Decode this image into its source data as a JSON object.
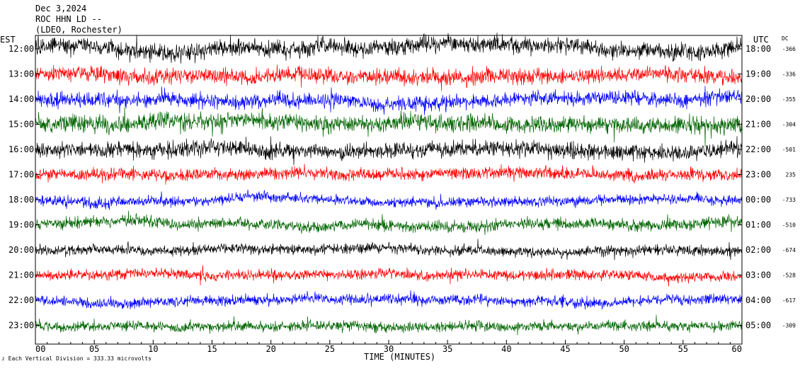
{
  "header": {
    "date": "Dec 3,2024",
    "station": "ROC HHN LD --",
    "network": "(LDEO, Rochester)"
  },
  "chart_data": {
    "type": "line",
    "title": "Dec 3,2024",
    "xlabel": "TIME (MINUTES)",
    "x_ticks": [
      "00",
      "05",
      "10",
      "15",
      "20",
      "25",
      "30",
      "35",
      "40",
      "45",
      "50",
      "55",
      "60"
    ],
    "xlim": [
      0,
      60
    ],
    "left_axis_label": "EST",
    "right_axis_label": "UTC",
    "dc_label": "DC",
    "rows": [
      {
        "est": "12:00",
        "utc": "18:00",
        "dc": "-366",
        "color": "#000000",
        "amplitude": 0.75
      },
      {
        "est": "13:00",
        "utc": "19:00",
        "dc": "-336",
        "color": "#ff0000",
        "amplitude": 0.7
      },
      {
        "est": "14:00",
        "utc": "20:00",
        "dc": "-355",
        "color": "#0000ff",
        "amplitude": 0.65
      },
      {
        "est": "15:00",
        "utc": "21:00",
        "dc": "-304",
        "color": "#006400",
        "amplitude": 0.75
      },
      {
        "est": "16:00",
        "utc": "22:00",
        "dc": "-501",
        "color": "#000000",
        "amplitude": 0.7
      },
      {
        "est": "17:00",
        "utc": "23:00",
        "dc": "235",
        "color": "#ff0000",
        "amplitude": 0.55
      },
      {
        "est": "18:00",
        "utc": "00:00",
        "dc": "-733",
        "color": "#0000ff",
        "amplitude": 0.45
      },
      {
        "est": "19:00",
        "utc": "01:00",
        "dc": "-510",
        "color": "#006400",
        "amplitude": 0.5
      },
      {
        "est": "20:00",
        "utc": "02:00",
        "dc": "-674",
        "color": "#000000",
        "amplitude": 0.45
      },
      {
        "est": "21:00",
        "utc": "03:00",
        "dc": "-528",
        "color": "#ff0000",
        "amplitude": 0.45
      },
      {
        "est": "22:00",
        "utc": "04:00",
        "dc": "-617",
        "color": "#0000ff",
        "amplitude": 0.45
      },
      {
        "est": "23:00",
        "utc": "05:00",
        "dc": "-309",
        "color": "#006400",
        "amplitude": 0.45
      }
    ],
    "scale_note": "Each Vertical Division =  333.33 microvolts",
    "grid": false
  }
}
